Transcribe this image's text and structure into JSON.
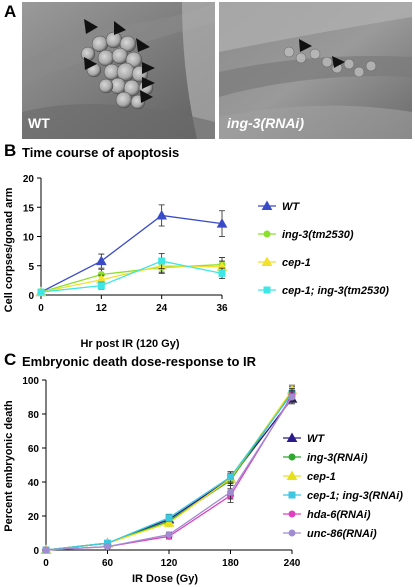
{
  "panelA": {
    "letter": "A",
    "left_label": "WT",
    "right_label": "ing-3(RNAi)"
  },
  "panelB": {
    "letter": "B",
    "title": "Time course of apoptosis"
  },
  "panelC": {
    "letter": "C",
    "title": "Embryonic death dose-response to IR"
  },
  "chart_data": [
    {
      "type": "line",
      "title": "Time course of apoptosis",
      "xlabel": "Hr post IR (120 Gy)",
      "ylabel": "Cell corpses/gonad arm",
      "x": [
        0,
        12,
        24,
        36
      ],
      "xticks": [
        "0",
        "12",
        "24",
        "36"
      ],
      "yticks": [
        0,
        5,
        10,
        15,
        20
      ],
      "xlim": [
        0,
        36
      ],
      "ylim": [
        0,
        20
      ],
      "legend_position": "right",
      "grid": false,
      "series": [
        {
          "name": "WT",
          "values": [
            0.5,
            5.8,
            13.6,
            12.2
          ],
          "errors": [
            0.3,
            1.2,
            1.8,
            2.2
          ],
          "color": "#3a4bc8",
          "marker": "triangle"
        },
        {
          "name": "ing-3(tm2530)",
          "values": [
            0.5,
            3.5,
            4.7,
            5.2
          ],
          "errors": [
            0.3,
            0.9,
            1.0,
            1.2
          ],
          "color": "#8de02a",
          "marker": "circle"
        },
        {
          "name": "cep-1",
          "values": [
            0.5,
            2.6,
            5.0,
            4.8
          ],
          "errors": [
            0.3,
            0.8,
            1.1,
            1.0
          ],
          "color": "#f2e12a",
          "marker": "triangle"
        },
        {
          "name": "cep-1; ing-3(tm2530)",
          "values": [
            0.5,
            1.6,
            5.8,
            3.7
          ],
          "errors": [
            0.3,
            0.6,
            1.3,
            0.9
          ],
          "color": "#3ee6e6",
          "marker": "square"
        }
      ]
    },
    {
      "type": "line",
      "title": "Embryonic death dose-response to IR",
      "xlabel": "IR Dose (Gy)",
      "ylabel": "Percent embryonic death",
      "x": [
        0,
        60,
        120,
        180,
        240
      ],
      "xticks": [
        "0",
        "60",
        "120",
        "180",
        "240"
      ],
      "yticks": [
        0,
        20,
        40,
        60,
        80,
        100
      ],
      "xlim": [
        0,
        240
      ],
      "ylim": [
        0,
        100
      ],
      "legend_position": "right",
      "grid": false,
      "series": [
        {
          "name": "WT",
          "values": [
            0,
            4,
            18,
            42,
            89
          ],
          "errors": [
            0.5,
            1,
            2,
            4,
            3
          ],
          "color": "#2a1a8a",
          "marker": "triangle"
        },
        {
          "name": "ing-3(RNAi)",
          "values": [
            0,
            4,
            17,
            41,
            93
          ],
          "errors": [
            0.5,
            1,
            2,
            3,
            3
          ],
          "color": "#2ea82e",
          "marker": "circle"
        },
        {
          "name": "cep-1",
          "values": [
            0,
            4,
            16,
            42,
            94
          ],
          "errors": [
            0.5,
            1,
            2,
            3,
            3
          ],
          "color": "#e8e01a",
          "marker": "triangle"
        },
        {
          "name": "cep-1; ing-3(RNAi)",
          "values": [
            0,
            4,
            19,
            43,
            92
          ],
          "errors": [
            0.5,
            1,
            2,
            3,
            3
          ],
          "color": "#3ec8e0",
          "marker": "square"
        },
        {
          "name": "hda-6(RNAi)",
          "values": [
            0,
            2,
            8,
            32,
            91
          ],
          "errors": [
            0.5,
            1,
            1.5,
            4,
            3
          ],
          "color": "#e040c0",
          "marker": "circle"
        },
        {
          "name": "unc-86(RNAi)",
          "values": [
            0,
            2,
            9,
            34,
            90
          ],
          "errors": [
            0.5,
            1,
            1.5,
            4,
            3
          ],
          "color": "#a08cd0",
          "marker": "circle"
        }
      ]
    }
  ]
}
